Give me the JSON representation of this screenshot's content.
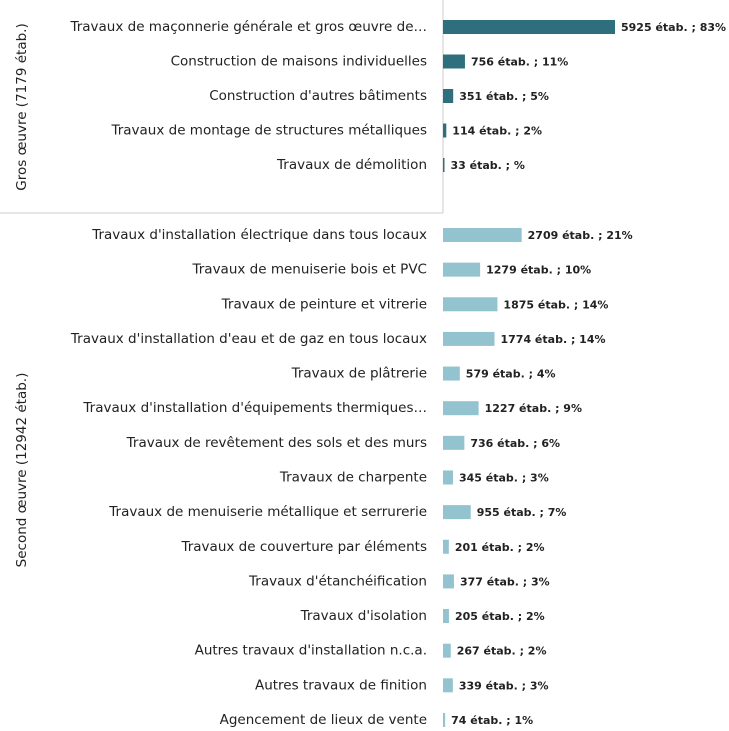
{
  "chart_data": {
    "type": "bar",
    "orientation": "horizontal",
    "groups": [
      {
        "name": "Gros œuvre (7179 étab.)",
        "color": "#2f6e7d",
        "categories": [
          "Travaux de maçonnerie générale et gros œuvre de…",
          "Construction de maisons individuelles",
          "Construction d'autres bâtiments",
          "Travaux de montage de structures métalliques",
          "Travaux de démolition"
        ],
        "values": [
          5925,
          756,
          351,
          114,
          33
        ],
        "value_labels": [
          "5925 étab. ; 83%",
          "756 étab. ; 11%",
          "351 étab. ; 5%",
          "114 étab. ; 2%",
          "33 étab. ; %"
        ]
      },
      {
        "name": "Second œuvre (12942 étab.)",
        "color": "#93c3cf",
        "categories": [
          "Travaux d'installation électrique dans tous locaux",
          "Travaux de menuiserie bois et PVC",
          "Travaux de peinture et vitrerie",
          "Travaux d'installation d'eau et de gaz en tous locaux",
          "Travaux de plâtrerie",
          "Travaux d'installation d'équipements thermiques…",
          "Travaux de revêtement des sols et des murs",
          "Travaux de charpente",
          "Travaux de menuiserie métallique et serrurerie",
          "Travaux de couverture par éléments",
          "Travaux d'étanchéification",
          "Travaux d'isolation",
          "Autres travaux d'installation n.c.a.",
          "Autres travaux de finition",
          "Agencement de lieux de vente"
        ],
        "values": [
          2709,
          1279,
          1875,
          1774,
          579,
          1227,
          736,
          345,
          955,
          201,
          377,
          205,
          267,
          339,
          74
        ],
        "value_labels": [
          "2709 étab. ; 21%",
          "1279 étab. ; 10%",
          "1875 étab. ; 14%",
          "1774 étab. ; 14%",
          "579 étab. ; 4%",
          "1227 étab. ; 9%",
          "736 étab. ; 6%",
          "345 étab. ; 3%",
          "955 étab. ; 7%",
          "201 étab. ; 2%",
          "377 étab. ; 3%",
          "205 étab. ; 2%",
          "267 étab. ; 2%",
          "339 étab. ; 3%",
          "74 étab. ; 1%"
        ]
      }
    ]
  }
}
